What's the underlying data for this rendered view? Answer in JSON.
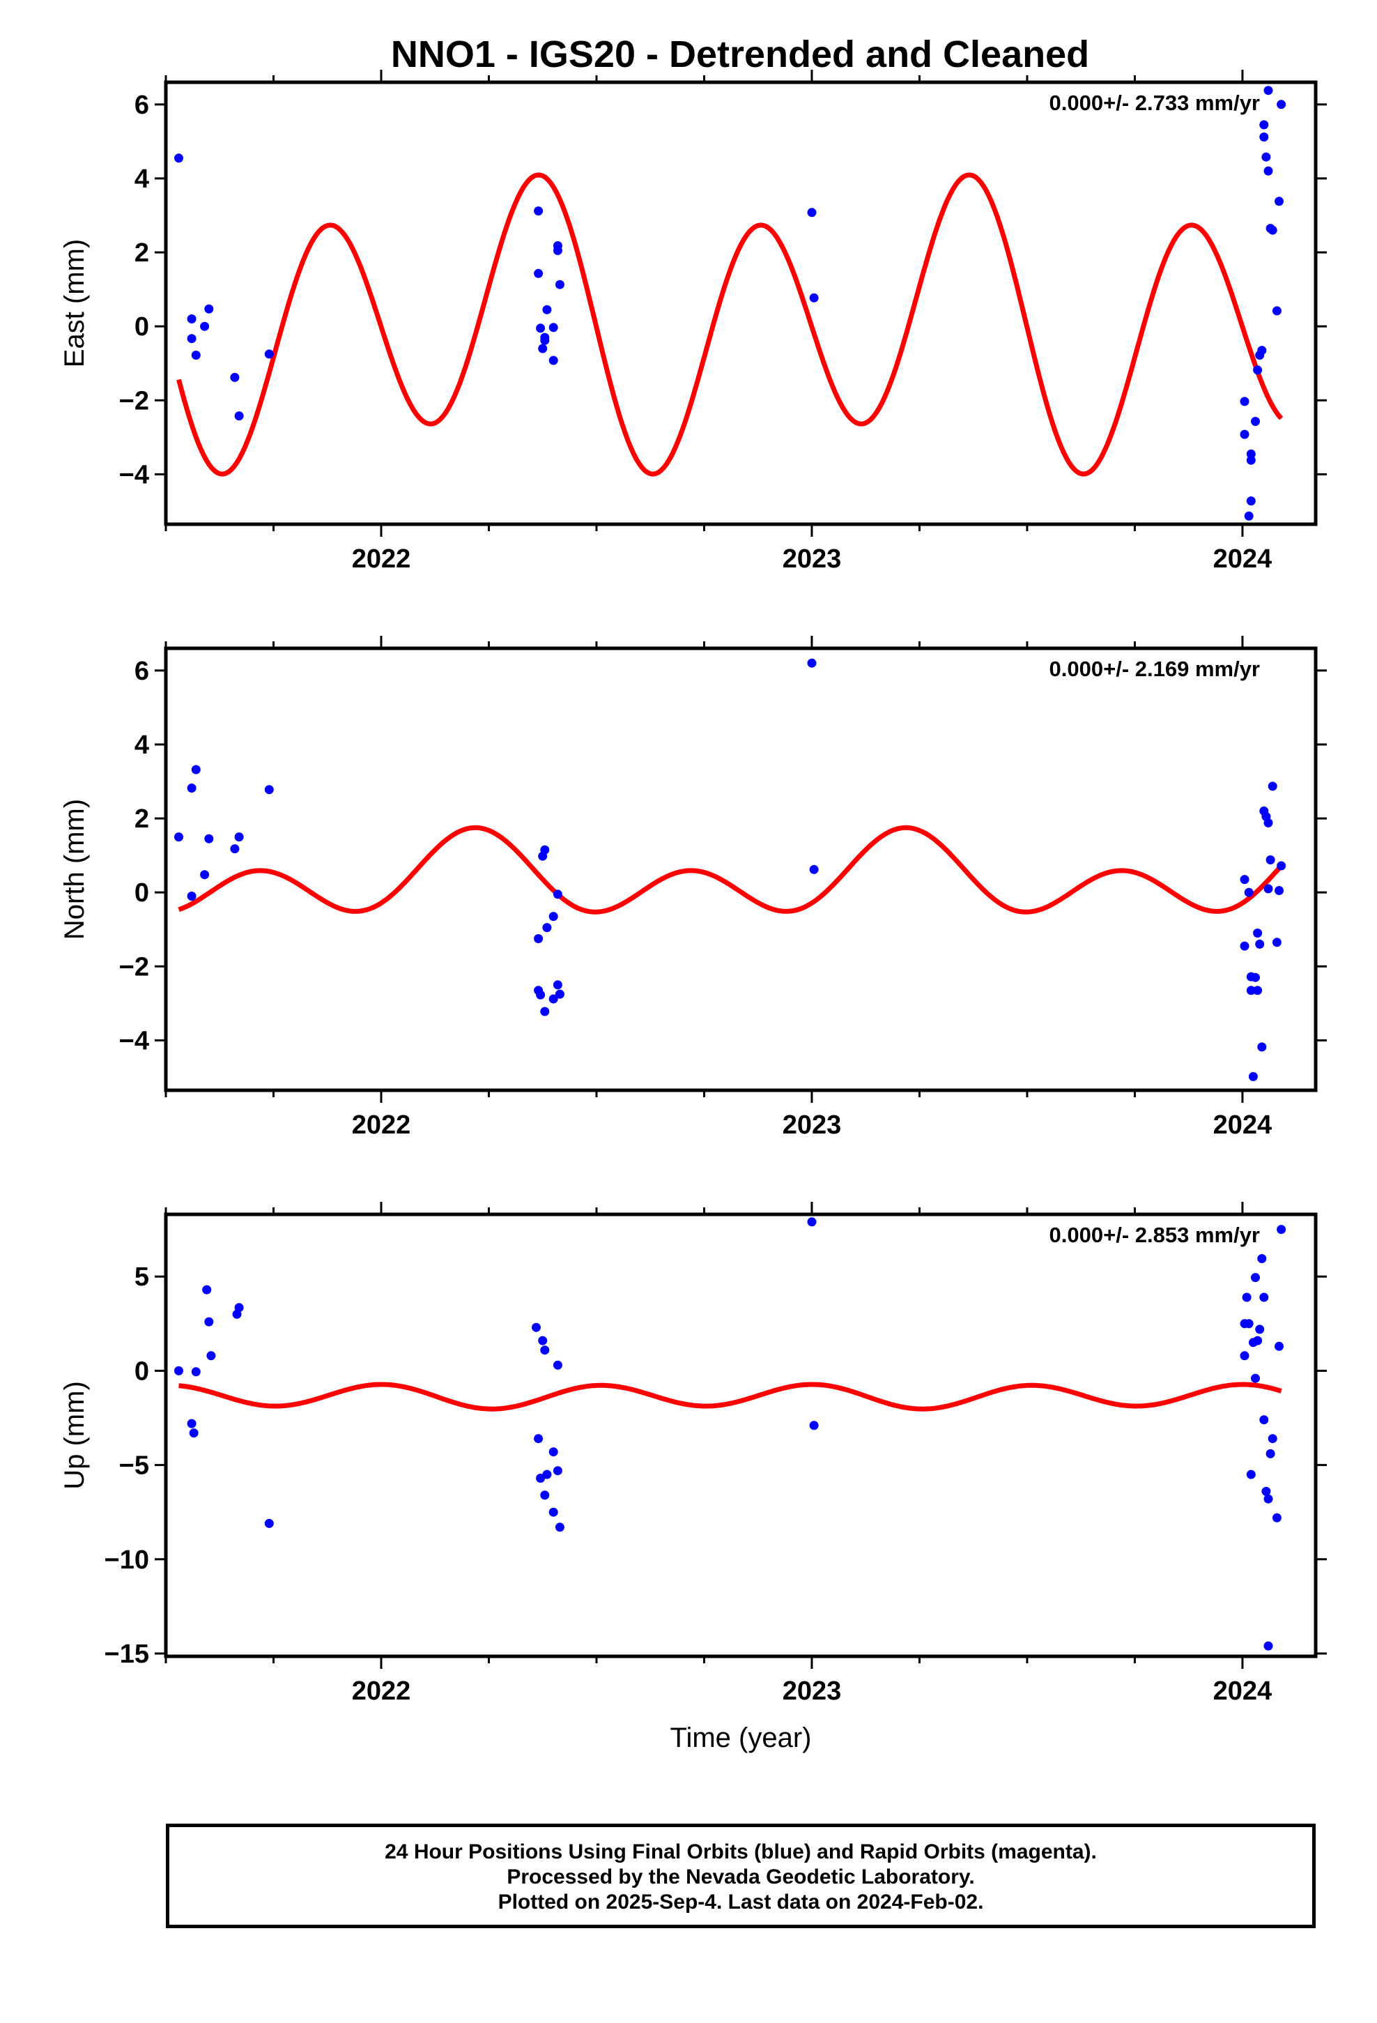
{
  "title": "NNO1 - IGS20 - Detrended and Cleaned",
  "colors": {
    "final_orbits": "#0000ff",
    "model": "#ff0000",
    "axes": "#000000"
  },
  "chart_data": [
    {
      "type": "scatter",
      "ylabel": "East (mm)",
      "xlabel": "",
      "annotation": "0.000+/- 2.733 mm/yr",
      "xlim": [
        2021.5,
        2024.17
      ],
      "ylim": [
        -5.35,
        6.6
      ],
      "xticks": [
        2022,
        2023,
        2024
      ],
      "xtick_labels": [
        "2022",
        "2023",
        "2024"
      ],
      "yticks": [
        -4,
        -2,
        0,
        2,
        4,
        6
      ],
      "ytick_labels": [
        "−4",
        "−2",
        "0",
        "2",
        "4",
        "6"
      ],
      "model": {
        "offset": 0.05,
        "a1": 0.96,
        "p1": 0.01,
        "a2": 3.35,
        "p2": -3.12,
        "x_start": 2021.53,
        "x_end": 2024.09
      },
      "points": [
        [
          2021.53,
          4.55
        ],
        [
          2021.56,
          -0.33
        ],
        [
          2021.56,
          0.2
        ],
        [
          2021.57,
          -0.78
        ],
        [
          2021.59,
          0.0
        ],
        [
          2021.6,
          0.47
        ],
        [
          2021.66,
          -1.38
        ],
        [
          2021.67,
          -2.42
        ],
        [
          2021.74,
          -0.75
        ],
        [
          2022.365,
          3.12
        ],
        [
          2022.365,
          1.43
        ],
        [
          2022.37,
          -0.05
        ],
        [
          2022.375,
          -0.6
        ],
        [
          2022.38,
          -0.3
        ],
        [
          2022.38,
          -0.38
        ],
        [
          2022.385,
          0.45
        ],
        [
          2022.4,
          -0.03
        ],
        [
          2022.4,
          -0.92
        ],
        [
          2022.41,
          2.05
        ],
        [
          2022.41,
          2.18
        ],
        [
          2022.415,
          1.13
        ],
        [
          2023.0,
          3.08
        ],
        [
          2023.005,
          0.77
        ],
        [
          2024.005,
          -2.92
        ],
        [
          2024.005,
          -2.03
        ],
        [
          2024.015,
          -5.13
        ],
        [
          2024.02,
          -4.72
        ],
        [
          2024.02,
          -3.45
        ],
        [
          2024.02,
          -3.62
        ],
        [
          2024.03,
          -2.57
        ],
        [
          2024.035,
          -1.18
        ],
        [
          2024.04,
          -0.78
        ],
        [
          2024.045,
          -0.65
        ],
        [
          2024.05,
          5.12
        ],
        [
          2024.05,
          5.45
        ],
        [
          2024.055,
          4.58
        ],
        [
          2024.06,
          6.38
        ],
        [
          2024.06,
          4.2
        ],
        [
          2024.065,
          2.65
        ],
        [
          2024.07,
          2.6
        ],
        [
          2024.08,
          0.42
        ],
        [
          2024.085,
          3.38
        ],
        [
          2024.09,
          6.0
        ]
      ]
    },
    {
      "type": "scatter",
      "ylabel": "North (mm)",
      "xlabel": "",
      "annotation": "0.000+/- 2.169 mm/yr",
      "xlim": [
        2021.5,
        2024.17
      ],
      "ylim": [
        -5.35,
        6.6
      ],
      "xticks": [
        2022,
        2023,
        2024
      ],
      "xtick_labels": [
        "2022",
        "2023",
        "2024"
      ],
      "yticks": [
        -4,
        -2,
        0,
        2,
        4,
        6
      ],
      "ytick_labels": [
        "−4",
        "−2",
        "0",
        "2",
        "4",
        "6"
      ],
      "model": {
        "offset": 0.35,
        "a1": 0.58,
        "p1": 0.21,
        "a2": 0.82,
        "p2": -1.18,
        "x_start": 2021.53,
        "x_end": 2024.09
      },
      "points": [
        [
          2021.53,
          1.5
        ],
        [
          2021.56,
          -0.1
        ],
        [
          2021.56,
          2.82
        ],
        [
          2021.57,
          3.32
        ],
        [
          2021.59,
          0.48
        ],
        [
          2021.6,
          1.45
        ],
        [
          2021.66,
          1.18
        ],
        [
          2021.67,
          1.5
        ],
        [
          2021.74,
          2.78
        ],
        [
          2022.365,
          -1.25
        ],
        [
          2022.365,
          -2.65
        ],
        [
          2022.37,
          -2.77
        ],
        [
          2022.375,
          0.98
        ],
        [
          2022.38,
          1.15
        ],
        [
          2022.38,
          -3.22
        ],
        [
          2022.385,
          -0.95
        ],
        [
          2022.4,
          -2.88
        ],
        [
          2022.4,
          -0.65
        ],
        [
          2022.41,
          -2.5
        ],
        [
          2022.41,
          -0.05
        ],
        [
          2022.415,
          -2.75
        ],
        [
          2023.0,
          6.2
        ],
        [
          2023.005,
          0.62
        ],
        [
          2024.005,
          -1.45
        ],
        [
          2024.005,
          0.35
        ],
        [
          2024.015,
          0.0
        ],
        [
          2024.02,
          -2.28
        ],
        [
          2024.02,
          -2.65
        ],
        [
          2024.025,
          -4.98
        ],
        [
          2024.03,
          -2.3
        ],
        [
          2024.035,
          -1.1
        ],
        [
          2024.035,
          -2.65
        ],
        [
          2024.04,
          -1.4
        ],
        [
          2024.045,
          -4.18
        ],
        [
          2024.05,
          2.2
        ],
        [
          2024.055,
          2.05
        ],
        [
          2024.06,
          1.88
        ],
        [
          2024.06,
          0.1
        ],
        [
          2024.065,
          0.88
        ],
        [
          2024.07,
          2.87
        ],
        [
          2024.08,
          -1.35
        ],
        [
          2024.085,
          0.05
        ],
        [
          2024.09,
          0.72
        ]
      ]
    },
    {
      "type": "scatter",
      "ylabel": "Up (mm)",
      "xlabel": "Time (year)",
      "annotation": "0.000+/- 2.853 mm/yr",
      "xlim": [
        2021.5,
        2024.17
      ],
      "ylim": [
        -15.15,
        8.3
      ],
      "xticks": [
        2022,
        2023,
        2024
      ],
      "xtick_labels": [
        "2022",
        "2023",
        "2024"
      ],
      "yticks": [
        -15,
        -10,
        -5,
        0,
        5
      ],
      "ytick_labels": [
        "−15",
        "−10",
        "−5",
        "0",
        "5"
      ],
      "model": {
        "offset": -1.35,
        "a1": 0.08,
        "p1": 2.8,
        "a2": 0.6,
        "p2": 1.5,
        "x_start": 2021.53,
        "x_end": 2024.09
      },
      "points": [
        [
          2021.53,
          0.0
        ],
        [
          2021.56,
          -2.8
        ],
        [
          2021.565,
          -3.3
        ],
        [
          2021.57,
          -0.05
        ],
        [
          2021.595,
          4.3
        ],
        [
          2021.6,
          2.6
        ],
        [
          2021.605,
          0.8
        ],
        [
          2021.665,
          3.0
        ],
        [
          2021.67,
          3.35
        ],
        [
          2021.74,
          -8.1
        ],
        [
          2022.36,
          2.3
        ],
        [
          2022.365,
          -3.6
        ],
        [
          2022.37,
          -5.7
        ],
        [
          2022.375,
          1.6
        ],
        [
          2022.38,
          1.1
        ],
        [
          2022.38,
          -6.6
        ],
        [
          2022.385,
          -5.5
        ],
        [
          2022.4,
          -4.3
        ],
        [
          2022.4,
          -7.5
        ],
        [
          2022.41,
          0.3
        ],
        [
          2022.41,
          -5.3
        ],
        [
          2022.415,
          -8.3
        ],
        [
          2023.0,
          7.9
        ],
        [
          2023.005,
          -2.9
        ],
        [
          2024.005,
          2.5
        ],
        [
          2024.005,
          0.8
        ],
        [
          2024.01,
          3.9
        ],
        [
          2024.015,
          2.5
        ],
        [
          2024.02,
          -5.5
        ],
        [
          2024.025,
          1.5
        ],
        [
          2024.03,
          -0.4
        ],
        [
          2024.03,
          4.95
        ],
        [
          2024.035,
          1.6
        ],
        [
          2024.04,
          2.2
        ],
        [
          2024.045,
          5.95
        ],
        [
          2024.05,
          3.9
        ],
        [
          2024.05,
          -2.6
        ],
        [
          2024.055,
          -6.4
        ],
        [
          2024.06,
          -6.8
        ],
        [
          2024.065,
          -4.4
        ],
        [
          2024.07,
          -3.6
        ],
        [
          2024.08,
          -7.8
        ],
        [
          2024.085,
          1.3
        ],
        [
          2024.09,
          7.5
        ],
        [
          2024.06,
          -14.6
        ]
      ]
    }
  ],
  "footer": {
    "line1": "24 Hour Positions Using Final Orbits (blue) and Rapid Orbits (magenta).",
    "line2": "Processed by the Nevada Geodetic Laboratory.",
    "line3": "Plotted on 2025-Sep-4. Last data on 2024-Feb-02."
  }
}
